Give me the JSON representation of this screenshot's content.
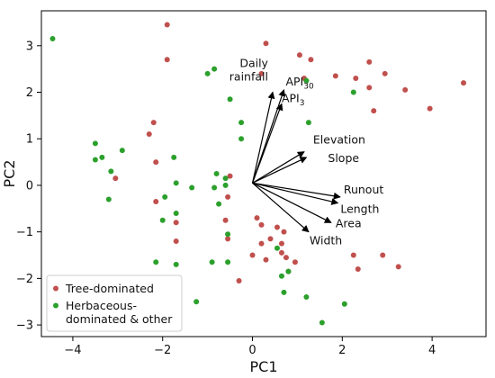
{
  "chart_data": {
    "type": "scatter",
    "title": "",
    "xlabel": "PC1",
    "ylabel": "PC2",
    "xlim": [
      -4.7,
      5.2
    ],
    "ylim": [
      -3.25,
      3.75
    ],
    "xticks": [
      -4,
      -2,
      0,
      2,
      4
    ],
    "yticks": [
      -3,
      -2,
      -1,
      0,
      1,
      2,
      3
    ],
    "xtick_labels": [
      "−4",
      "−2",
      "0",
      "2",
      "4"
    ],
    "ytick_labels": [
      "−3",
      "−2",
      "−1",
      "0",
      "1",
      "2",
      "3"
    ],
    "grid": false,
    "legend_position": "bottom-left",
    "colors": {
      "tree": "#c0504d",
      "herb": "#2ca02c",
      "arrow": "#000000"
    },
    "series": [
      {
        "name": "Tree-dominated",
        "legend_lines": [
          "Tree-dominated"
        ],
        "color": "#c0504d",
        "points": [
          [
            -1.9,
            3.45
          ],
          [
            -1.9,
            2.7
          ],
          [
            0.3,
            3.05
          ],
          [
            1.05,
            2.8
          ],
          [
            1.3,
            2.7
          ],
          [
            0.2,
            2.4
          ],
          [
            1.15,
            2.3
          ],
          [
            1.85,
            2.35
          ],
          [
            2.3,
            2.3
          ],
          [
            2.6,
            2.65
          ],
          [
            2.95,
            2.4
          ],
          [
            2.7,
            1.6
          ],
          [
            2.6,
            2.1
          ],
          [
            3.4,
            2.05
          ],
          [
            3.95,
            1.65
          ],
          [
            4.7,
            2.2
          ],
          [
            -2.2,
            1.35
          ],
          [
            -2.3,
            1.1
          ],
          [
            -2.15,
            0.5
          ],
          [
            -3.05,
            0.15
          ],
          [
            -2.15,
            -0.35
          ],
          [
            -0.55,
            -0.25
          ],
          [
            -0.6,
            -0.75
          ],
          [
            -1.7,
            -0.8
          ],
          [
            -0.55,
            -1.15
          ],
          [
            -1.7,
            -1.2
          ],
          [
            0.1,
            -0.7
          ],
          [
            0.2,
            -0.85
          ],
          [
            0.4,
            -1.15
          ],
          [
            0.55,
            -0.9
          ],
          [
            0.7,
            -1.0
          ],
          [
            0.2,
            -1.25
          ],
          [
            0.65,
            -1.25
          ],
          [
            0.0,
            -1.5
          ],
          [
            0.3,
            -1.6
          ],
          [
            0.65,
            -1.45
          ],
          [
            0.75,
            -1.55
          ],
          [
            0.95,
            -1.65
          ],
          [
            0.8,
            -1.85
          ],
          [
            2.35,
            -1.8
          ],
          [
            2.9,
            -1.5
          ],
          [
            3.25,
            -1.75
          ],
          [
            2.25,
            -1.5
          ],
          [
            -0.3,
            -2.05
          ],
          [
            -0.5,
            0.2
          ]
        ]
      },
      {
        "name": "Herbaceous-dominated & other",
        "legend_lines": [
          "Herbaceous-",
          "dominated & other"
        ],
        "color": "#2ca02c",
        "points": [
          [
            -4.45,
            3.15
          ],
          [
            -1.0,
            2.4
          ],
          [
            -0.85,
            2.5
          ],
          [
            1.2,
            2.25
          ],
          [
            2.25,
            2.0
          ],
          [
            1.25,
            1.35
          ],
          [
            -0.5,
            1.85
          ],
          [
            -0.25,
            1.35
          ],
          [
            -0.25,
            1.0
          ],
          [
            -3.5,
            0.9
          ],
          [
            -3.35,
            0.6
          ],
          [
            -2.9,
            0.75
          ],
          [
            -3.5,
            0.55
          ],
          [
            -3.15,
            0.3
          ],
          [
            -3.2,
            -0.3
          ],
          [
            -1.75,
            0.6
          ],
          [
            -1.7,
            0.05
          ],
          [
            -1.35,
            -0.05
          ],
          [
            -0.8,
            0.25
          ],
          [
            -0.6,
            0.15
          ],
          [
            -0.85,
            -0.05
          ],
          [
            -0.6,
            0.0
          ],
          [
            -0.75,
            -0.4
          ],
          [
            -1.95,
            -0.25
          ],
          [
            -2.0,
            -0.75
          ],
          [
            -1.7,
            -0.6
          ],
          [
            -0.55,
            -1.05
          ],
          [
            -0.55,
            -1.65
          ],
          [
            -0.9,
            -1.65
          ],
          [
            -1.7,
            -1.7
          ],
          [
            -2.15,
            -1.65
          ],
          [
            -1.25,
            -2.5
          ],
          [
            0.55,
            -1.35
          ],
          [
            0.8,
            -1.85
          ],
          [
            0.7,
            -2.3
          ],
          [
            0.65,
            -1.95
          ],
          [
            1.2,
            -2.4
          ],
          [
            1.55,
            -2.95
          ],
          [
            2.05,
            -2.55
          ]
        ]
      }
    ],
    "arrows": [
      {
        "label_lines": [
          "Daily",
          "rainfall"
        ],
        "end": [
          0.45,
          2.0
        ]
      },
      {
        "label_lines": [
          "API",
          "30"
        ],
        "label_type": "sub",
        "end": [
          0.7,
          2.05
        ]
      },
      {
        "label_lines": [
          "API",
          "3"
        ],
        "label_type": "sub",
        "end": [
          0.65,
          1.75
        ]
      },
      {
        "label_lines": [
          "Elevation"
        ],
        "end": [
          1.15,
          0.72
        ]
      },
      {
        "label_lines": [
          "Slope"
        ],
        "end": [
          1.2,
          0.6
        ]
      },
      {
        "label_lines": [
          "Runout"
        ],
        "end": [
          1.95,
          -0.25
        ]
      },
      {
        "label_lines": [
          "Length"
        ],
        "end": [
          1.9,
          -0.38
        ]
      },
      {
        "label_lines": [
          "Area"
        ],
        "end": [
          1.75,
          -0.8
        ]
      },
      {
        "label_lines": [
          "Width"
        ],
        "end": [
          1.25,
          -1.0
        ]
      }
    ]
  }
}
